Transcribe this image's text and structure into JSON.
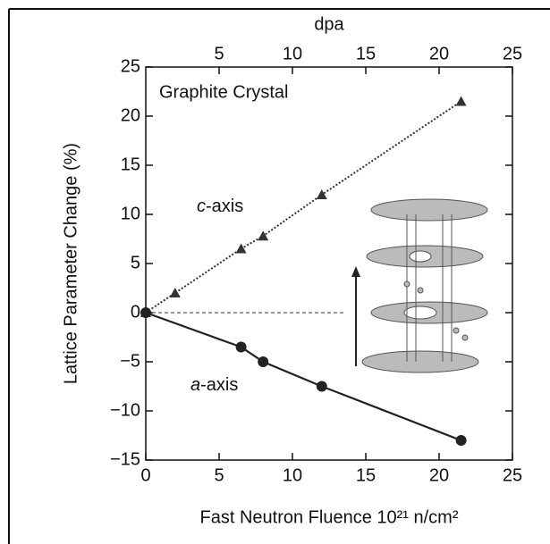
{
  "chart_data": {
    "type": "line",
    "title": "Graphite Crystal",
    "xlabel": "Fast Neutron Fluence 10²¹ n/cm²",
    "ylabel": "Lattice Parameter Change (%)",
    "x2label": "dpa",
    "xlim": [
      0,
      25
    ],
    "xticks": [
      0,
      5,
      10,
      15,
      20,
      25
    ],
    "x2lim": [
      0,
      25
    ],
    "x2ticks": [
      5,
      10,
      15,
      20,
      25
    ],
    "ylim": [
      -15,
      25
    ],
    "yticks": [
      -15,
      -10,
      -5,
      0,
      5,
      10,
      15,
      20,
      25
    ],
    "yticks_labels_minus": true,
    "series": [
      {
        "name": [
          "c",
          "-axis"
        ],
        "color": "#333333",
        "marker": "triangle",
        "linestyle": "dotted",
        "x": [
          0,
          2,
          6.5,
          8,
          12,
          21.5
        ],
        "values": [
          0,
          2,
          6.5,
          7.8,
          12,
          21.5
        ]
      },
      {
        "name": [
          "a",
          "-axis"
        ],
        "color": "#222222",
        "marker": "circle",
        "linestyle": "solid",
        "x": [
          0,
          6.5,
          8,
          12,
          21.5
        ],
        "values": [
          0,
          -3.5,
          -5,
          -7.5,
          -13
        ]
      }
    ]
  }
}
